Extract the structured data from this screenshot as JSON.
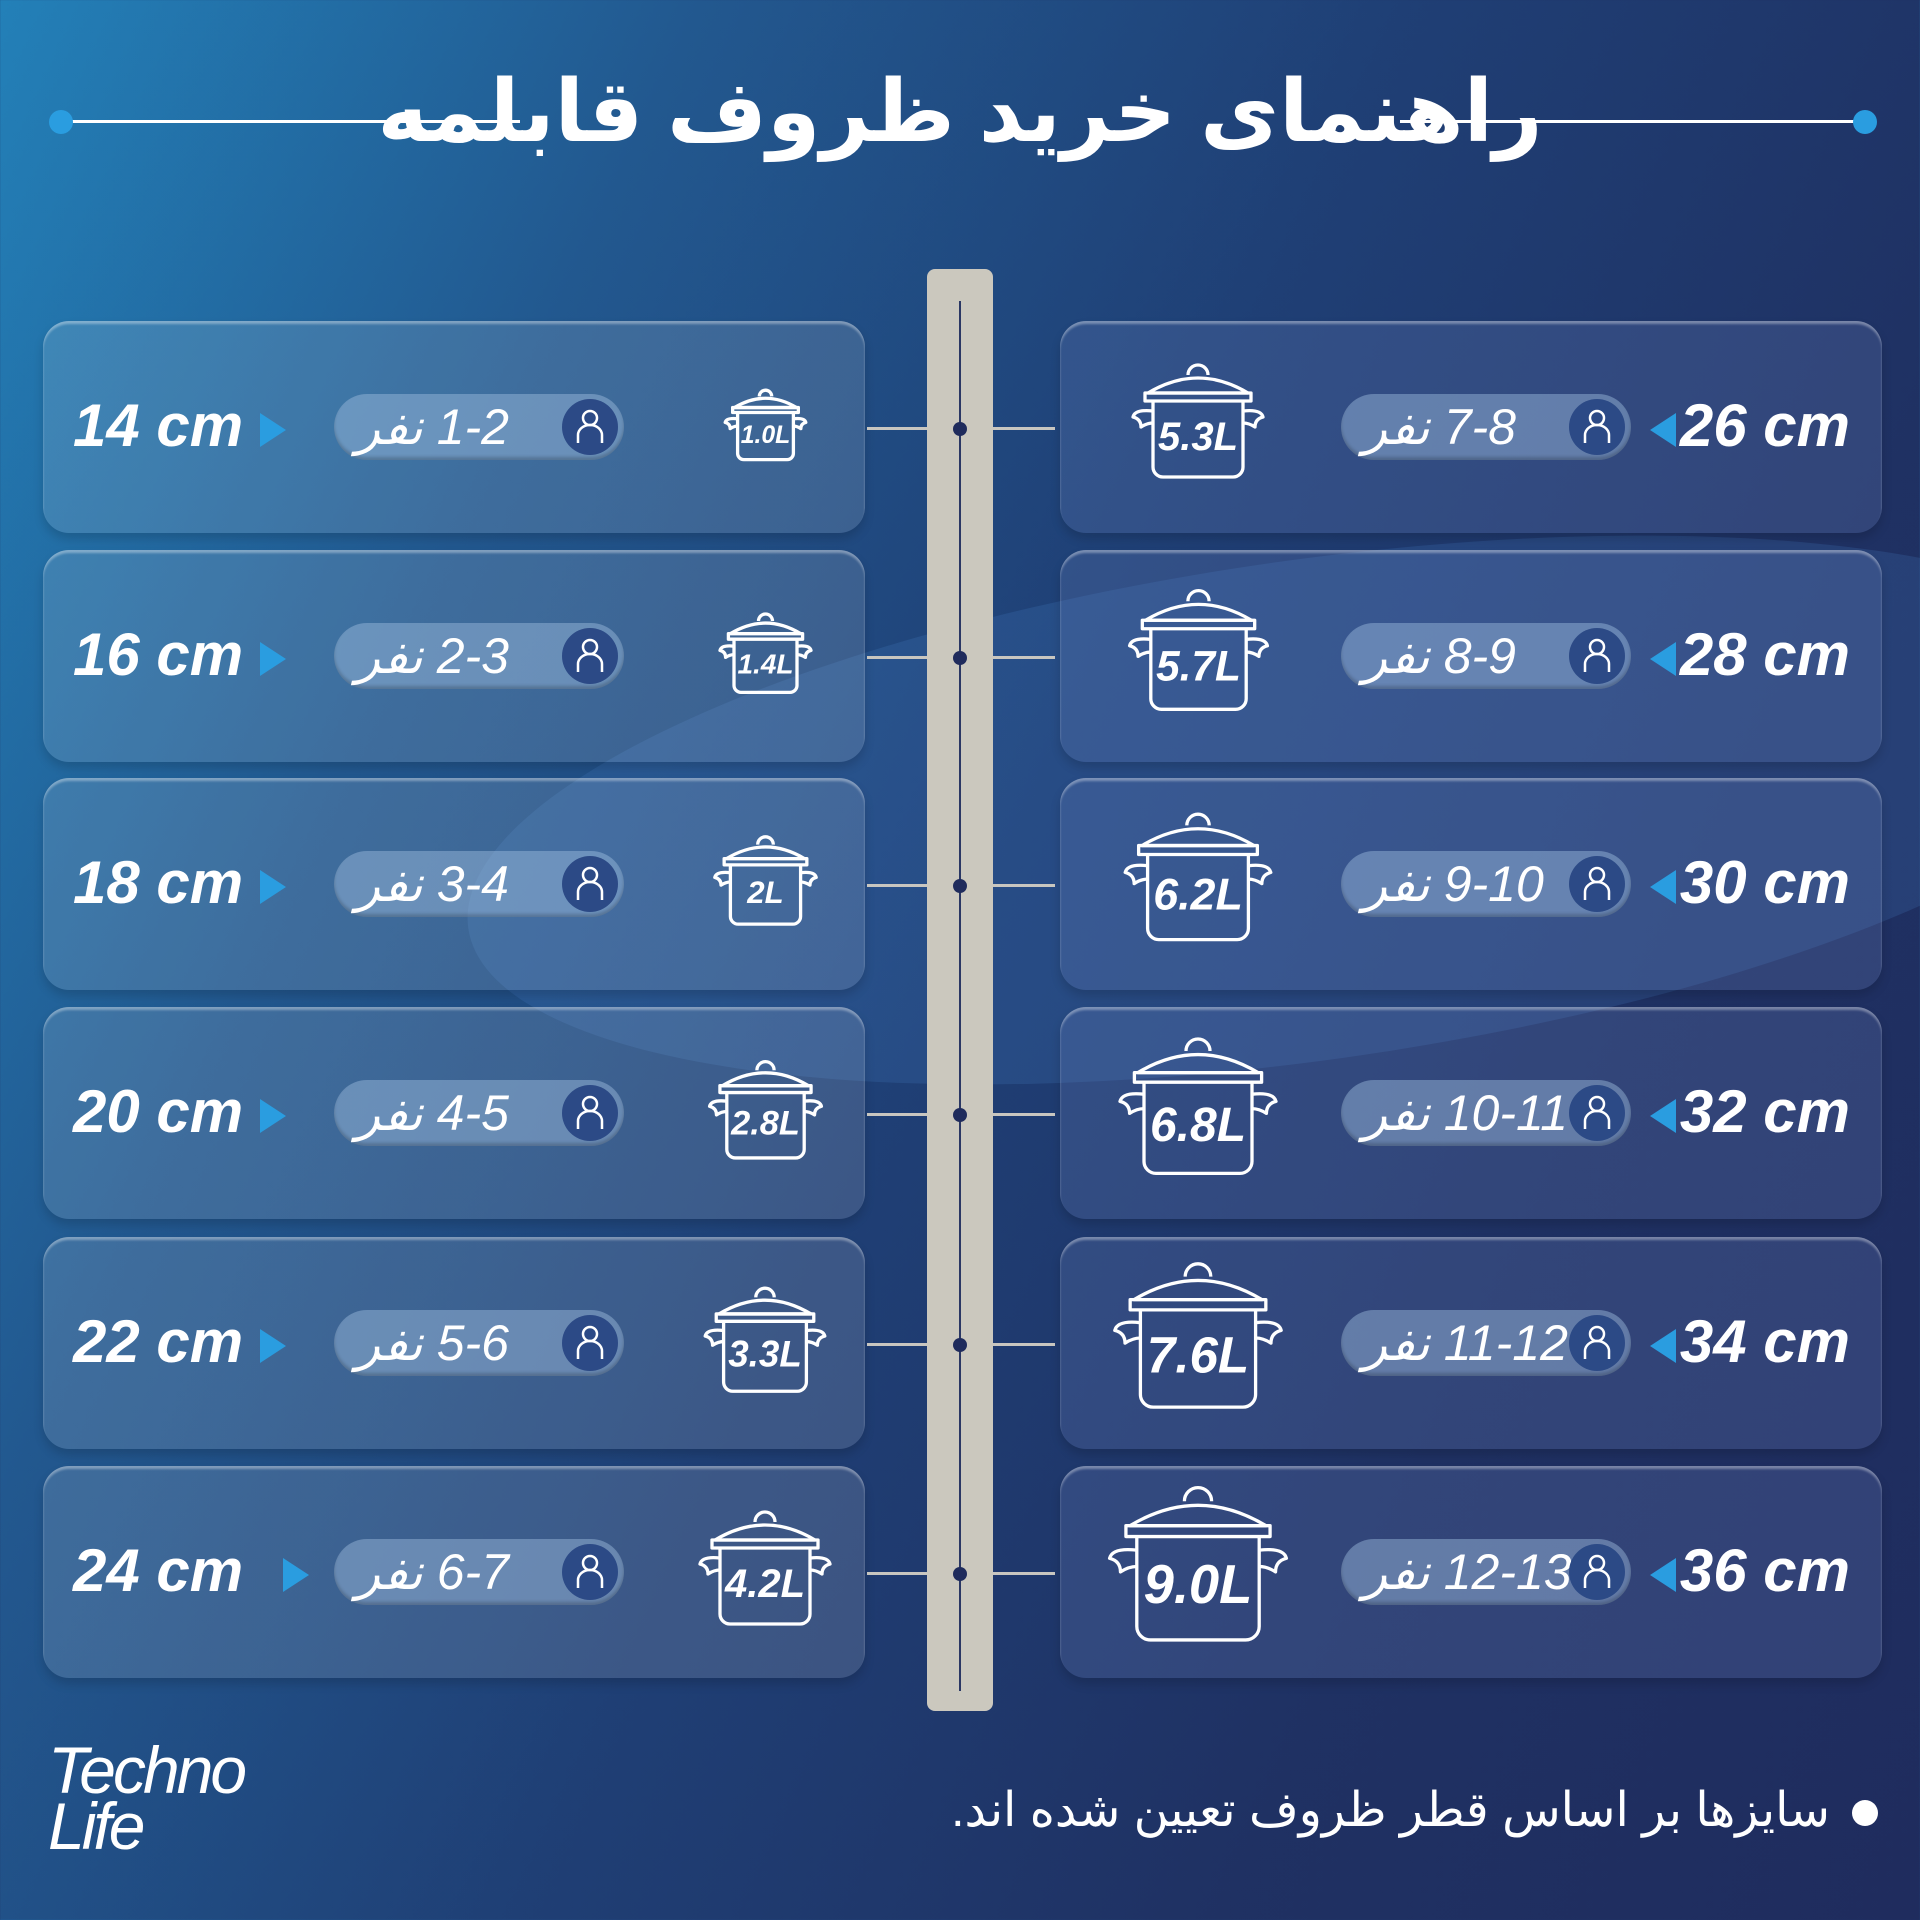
{
  "title": "راهنمای خرید ظروف قابلمه",
  "colors": {
    "accent": "#2a9de0",
    "pillar": "#cbc8be",
    "background_start": "#2380b8",
    "background_end": "#1f2c5e"
  },
  "left_rows": [
    {
      "diameter": "14 cm",
      "people": "1-2 نفر",
      "volume": "1.0L"
    },
    {
      "diameter": "16 cm",
      "people": "2-3 نفر",
      "volume": "1.4L"
    },
    {
      "diameter": "18 cm",
      "people": "3-4 نفر",
      "volume": "2L"
    },
    {
      "diameter": "20 cm",
      "people": "4-5 نفر",
      "volume": "2.8L"
    },
    {
      "diameter": "22 cm",
      "people": "5-6 نفر",
      "volume": "3.3L"
    },
    {
      "diameter": "24 cm",
      "people": "6-7 نفر",
      "volume": "4.2L"
    }
  ],
  "right_rows": [
    {
      "diameter": "26 cm",
      "people": "7-8 نفر",
      "volume": "5.3L"
    },
    {
      "diameter": "28 cm",
      "people": "8-9 نفر",
      "volume": "5.7L"
    },
    {
      "diameter": "30 cm",
      "people": "9-10 نفر",
      "volume": "6.2L"
    },
    {
      "diameter": "32 cm",
      "people": "10-11 نفر",
      "volume": "6.8L"
    },
    {
      "diameter": "34 cm",
      "people": "11-12 نفر",
      "volume": "7.6L"
    },
    {
      "diameter": "36 cm",
      "people": "12-13 نفر",
      "volume": "9.0L"
    }
  ],
  "icons": {
    "person": "person-icon",
    "pot": "pot-icon",
    "arrow": "triangle-arrow-icon"
  },
  "logo": {
    "line1": "Techno",
    "line2": "Life"
  },
  "note": "سایزها بر اساس قطر ظروف تعیین شده اند."
}
